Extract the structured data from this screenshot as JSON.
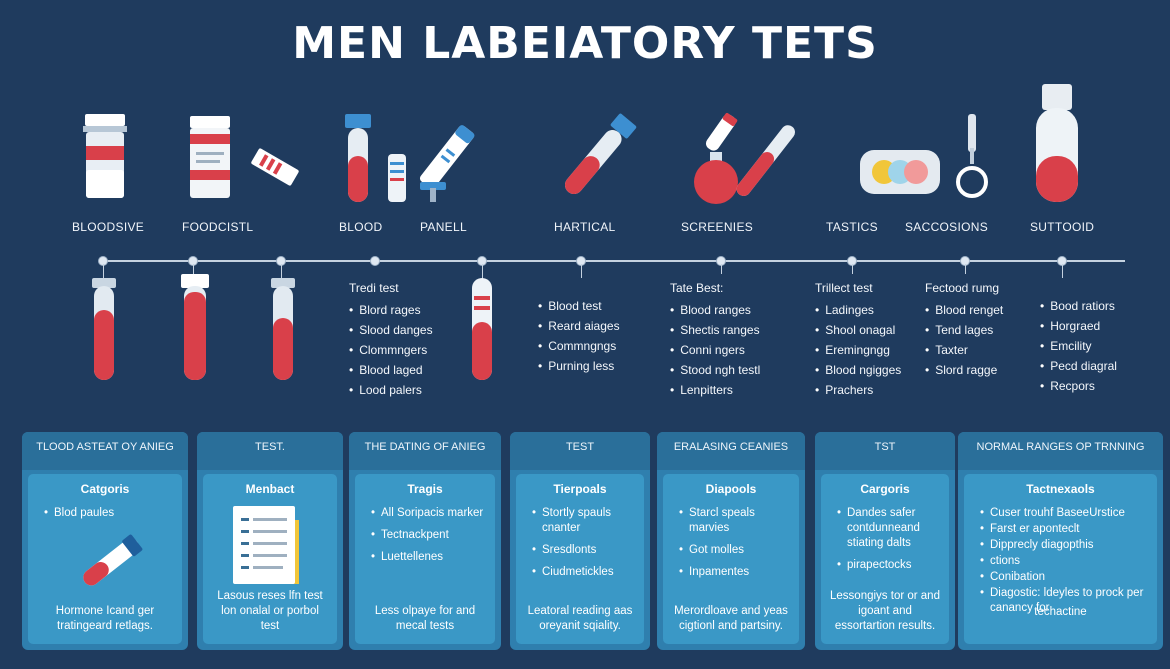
{
  "title": "MEN LABEIATORY TETS",
  "categories": [
    "BLOODSIVE",
    "FOODCISTL",
    "BLOOD",
    "PANELL",
    "HARTICAL",
    "SCREENIES",
    "TASTICS",
    "SACCOSIONS",
    "SUTTOOID"
  ],
  "icons": [
    "specimen-jar-icon",
    "specimen-jar-icon",
    "test-strip-icon",
    "test-tube-icon",
    "label-tube-icon",
    "microscope-icon",
    "tilted-tube-icon",
    "flask-icon",
    "tube-icon",
    "analyzer-device-icon",
    "hook-clamp-icon",
    "capped-tube-icon"
  ],
  "bullet_groups": [
    {
      "title": "Tredi test",
      "items": [
        "Blord rages",
        "Slood danges",
        "Clommngers",
        "Blood laged",
        "Lood palers"
      ]
    },
    {
      "title": "",
      "items": [
        "Blood test",
        "Reard aiages",
        "Commngngs",
        "Purning less"
      ]
    },
    {
      "title": "Tate Best:",
      "items": [
        "Blood ranges",
        "Shectis ranges",
        "Conni ngers",
        "Stood ngh testl",
        "Lenpitters"
      ]
    },
    {
      "title": "Trillect test",
      "items": [
        "Ladinges",
        "Shool onagal",
        "Eremingngg",
        "Blood ngigges",
        "Prachers"
      ]
    },
    {
      "title": "Fectood rumg",
      "items": [
        "Blood renget",
        "Tend lages",
        "Taxter",
        "Slord ragge"
      ]
    },
    {
      "title": "",
      "items": [
        "Bood ratiors",
        "Horgraed",
        "Emcility",
        "Pecd diagral",
        "Recpors"
      ]
    }
  ],
  "panels": [
    {
      "head": "TLOOD ASTEAT OY ANIEG",
      "title": "Catgoris",
      "items": [
        "Blod paules"
      ],
      "foot": "Hormone Icand ger tratingeard retlags."
    },
    {
      "head": "TEST.",
      "title": "Menbact",
      "items": [],
      "foot": "Lasous reses lfn test lon onalal or porbol test"
    },
    {
      "head": "THE DATING OF ANIEG",
      "title": "Tragis",
      "items": [
        "All Soripacis marker",
        "Tectnackpent",
        "Luettellenes"
      ],
      "foot": "Less olpaye for and mecal tests"
    },
    {
      "head": "TEST",
      "title": "Tierpoals",
      "items": [
        "Stortly spauls cnanter",
        "Sresdlonts",
        "Ciudmetickles"
      ],
      "foot": "Leatoral reading aas oreyanit sqiality."
    },
    {
      "head": "ERALASING CEANIES",
      "title": "Diapools",
      "items": [
        "Starcl speals marvies",
        "Got molles",
        "Inpamentes"
      ],
      "foot": "Merordloave and yeas cigtionl and partsiny."
    },
    {
      "head": "TST",
      "title": "Cargoris",
      "items": [
        "Dandes safer contdunneand stiating dalts",
        "pirapectocks"
      ],
      "foot": "Lessongiys tor or and igoant and essortartion results."
    },
    {
      "head": "NORMAL RANGES OP TRNNING",
      "title": "Tactnexaols",
      "items": [
        "Cuser trouhf BaseeUrstice",
        "Farst er aponteclt",
        "Dipprecly diagopthis",
        "ctions",
        "Conibation",
        "Diagostic: ldeyles to prock per canancy for"
      ],
      "foot": "techactine"
    }
  ],
  "colors": {
    "background": "#1f3b5e",
    "panel": "#2f7fae",
    "panel_inner": "#3a98c6",
    "blood": "#d9404a",
    "tube_cap": "#d9e4ee"
  }
}
